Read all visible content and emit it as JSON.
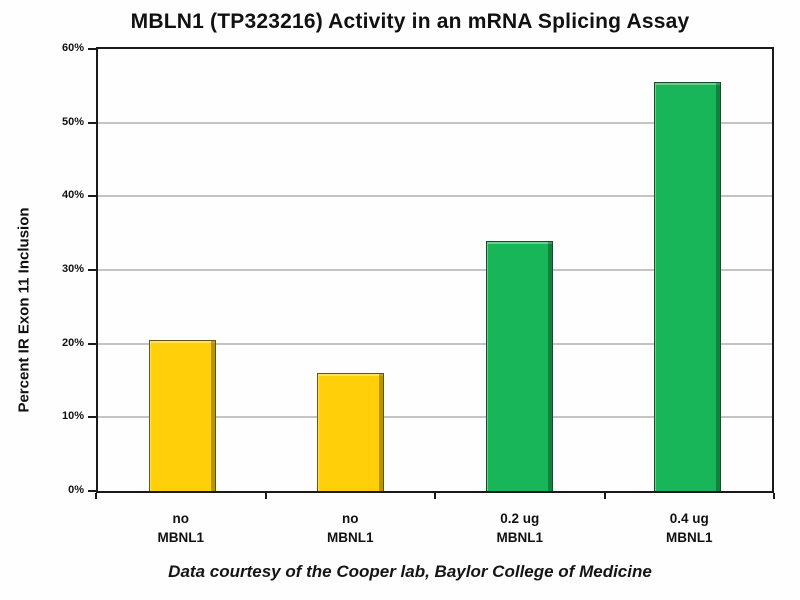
{
  "chart_data": {
    "type": "bar",
    "title": "MBLN1 (TP323216) Activity in an mRNA Splicing Assay",
    "ylabel": "Percent IR Exon 11 Inclusion",
    "xlabel": "",
    "caption": "Data courtesy of the Cooper lab, Baylor College of Medicine",
    "categories": [
      {
        "line1": "no",
        "line2": "MBNL1"
      },
      {
        "line1": "no",
        "line2": "MBNL1"
      },
      {
        "line1": "0.2 ug",
        "line2": "MBNL1"
      },
      {
        "line1": "0.4 ug",
        "line2": "MBNL1"
      }
    ],
    "values": [
      20.5,
      16,
      34,
      55.5
    ],
    "value_unit": "%",
    "bar_colors": [
      "#FFCF0A",
      "#FFCF0A",
      "#18B658",
      "#18B658"
    ],
    "ylim": [
      0,
      60
    ],
    "ytick_labels": [
      "0%",
      "10%",
      "20%",
      "30%",
      "40%",
      "50%",
      "60%"
    ],
    "grid": true,
    "legend": "none",
    "colors": {
      "yellow_no_mbnl1": "#FFCF0A",
      "green_with_mbnl1": "#18B658",
      "gridline": "#c4c4c4",
      "axis": "#1a1a1a"
    }
  }
}
